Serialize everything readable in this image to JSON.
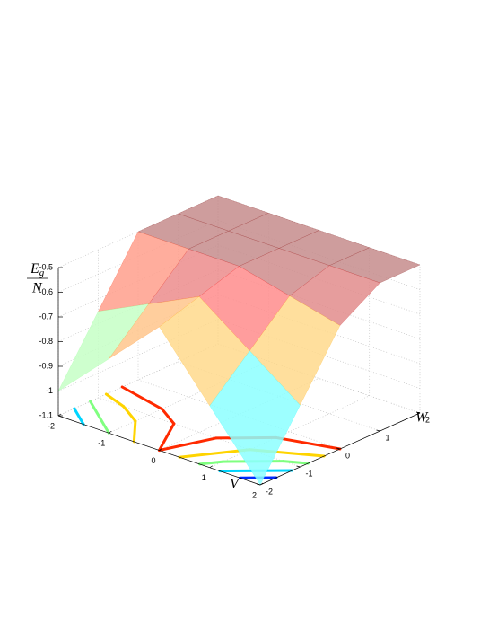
{
  "chart_data": {
    "type": "surface",
    "zlabel": {
      "symbol": "E",
      "subscript": "g",
      "denominator": "N"
    },
    "xlabel": "V",
    "ylabel": "W",
    "v": [
      -2,
      -1,
      0,
      1,
      2
    ],
    "w": [
      -2,
      -1,
      0,
      1,
      2
    ],
    "z": [
      [
        -1.0,
        -0.75,
        -0.5,
        -0.5,
        -0.5
      ],
      [
        -0.8,
        -0.65,
        -0.5,
        -0.5,
        -0.5
      ],
      [
        -0.6,
        -0.55,
        -0.5,
        -0.5,
        -0.5
      ],
      [
        -0.85,
        -0.7,
        -0.55,
        -0.5,
        -0.5
      ],
      [
        -1.1,
        -0.85,
        -0.6,
        -0.5,
        -0.5
      ]
    ],
    "vlim": [
      -2,
      2
    ],
    "wlim": [
      -2,
      2
    ],
    "zlim": [
      -1.1,
      -0.5
    ],
    "vticks": [
      -2,
      -1,
      0,
      1,
      2
    ],
    "wticks": [
      -2,
      -1,
      0,
      1,
      2
    ],
    "zticks": [
      -1.1,
      -1,
      -0.9,
      -0.8,
      -0.7,
      -0.6,
      -0.5
    ],
    "contour_levels": [
      -1.0,
      -0.9,
      -0.8,
      -0.7,
      -0.6
    ],
    "grid": true
  }
}
